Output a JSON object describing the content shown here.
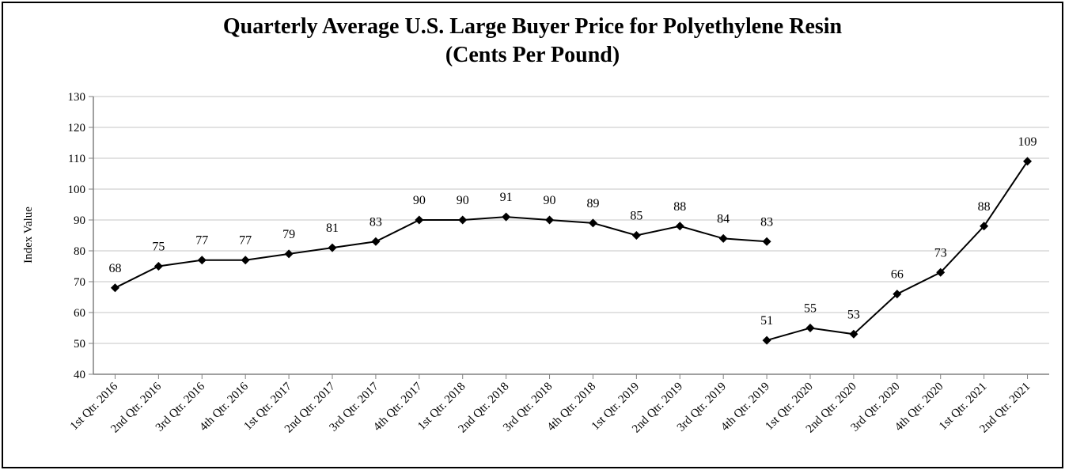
{
  "chart_data": {
    "type": "line",
    "title_line1": "Quarterly Average U.S. Large Buyer Price for Polyethylene Resin",
    "title_line2": "(Cents Per Pound)",
    "xlabel": "",
    "ylabel": "Index Value",
    "ylim": [
      40,
      130
    ],
    "yticks": [
      40,
      50,
      60,
      70,
      80,
      90,
      100,
      110,
      120,
      130
    ],
    "grid": true,
    "categories": [
      "1st Qtr. 2016",
      "2nd Qtr. 2016",
      "3rd Qtr. 2016",
      "4th Qtr. 2016",
      "1st Qtr. 2017",
      "2nd Qtr. 2017",
      "3rd Qtr. 2017",
      "4th Qtr. 2017",
      "1st Qtr. 2018",
      "2nd Qtr. 2018",
      "3rd Qtr. 2018",
      "4th Qtr. 2018",
      "1st Qtr. 2019",
      "2nd Qtr. 2019",
      "3rd Qtr. 2019",
      "4th Qtr. 2019",
      "1st Qtr. 2020",
      "2nd Qtr. 2020",
      "3rd Qtr. 2020",
      "4th Qtr. 2020",
      "1st Qtr. 2021",
      "2nd Qtr. 2021"
    ],
    "series": [
      {
        "name": "Price",
        "segments": [
          {
            "start_index": 0,
            "values": [
              68,
              75,
              77,
              77,
              79,
              81,
              83,
              90,
              90,
              91,
              90,
              89,
              85,
              88,
              84,
              83
            ]
          },
          {
            "start_index": 15,
            "values": [
              51,
              55,
              53,
              66,
              73,
              88,
              109
            ]
          }
        ],
        "label_values": [
          68,
          75,
          77,
          77,
          79,
          81,
          83,
          90,
          90,
          91,
          90,
          89,
          85,
          88,
          84,
          83,
          51,
          55,
          53,
          66,
          73,
          88,
          109
        ]
      }
    ],
    "colors": {
      "line": "#000000",
      "grid": "#d9d9d9",
      "axis": "#808080"
    }
  }
}
